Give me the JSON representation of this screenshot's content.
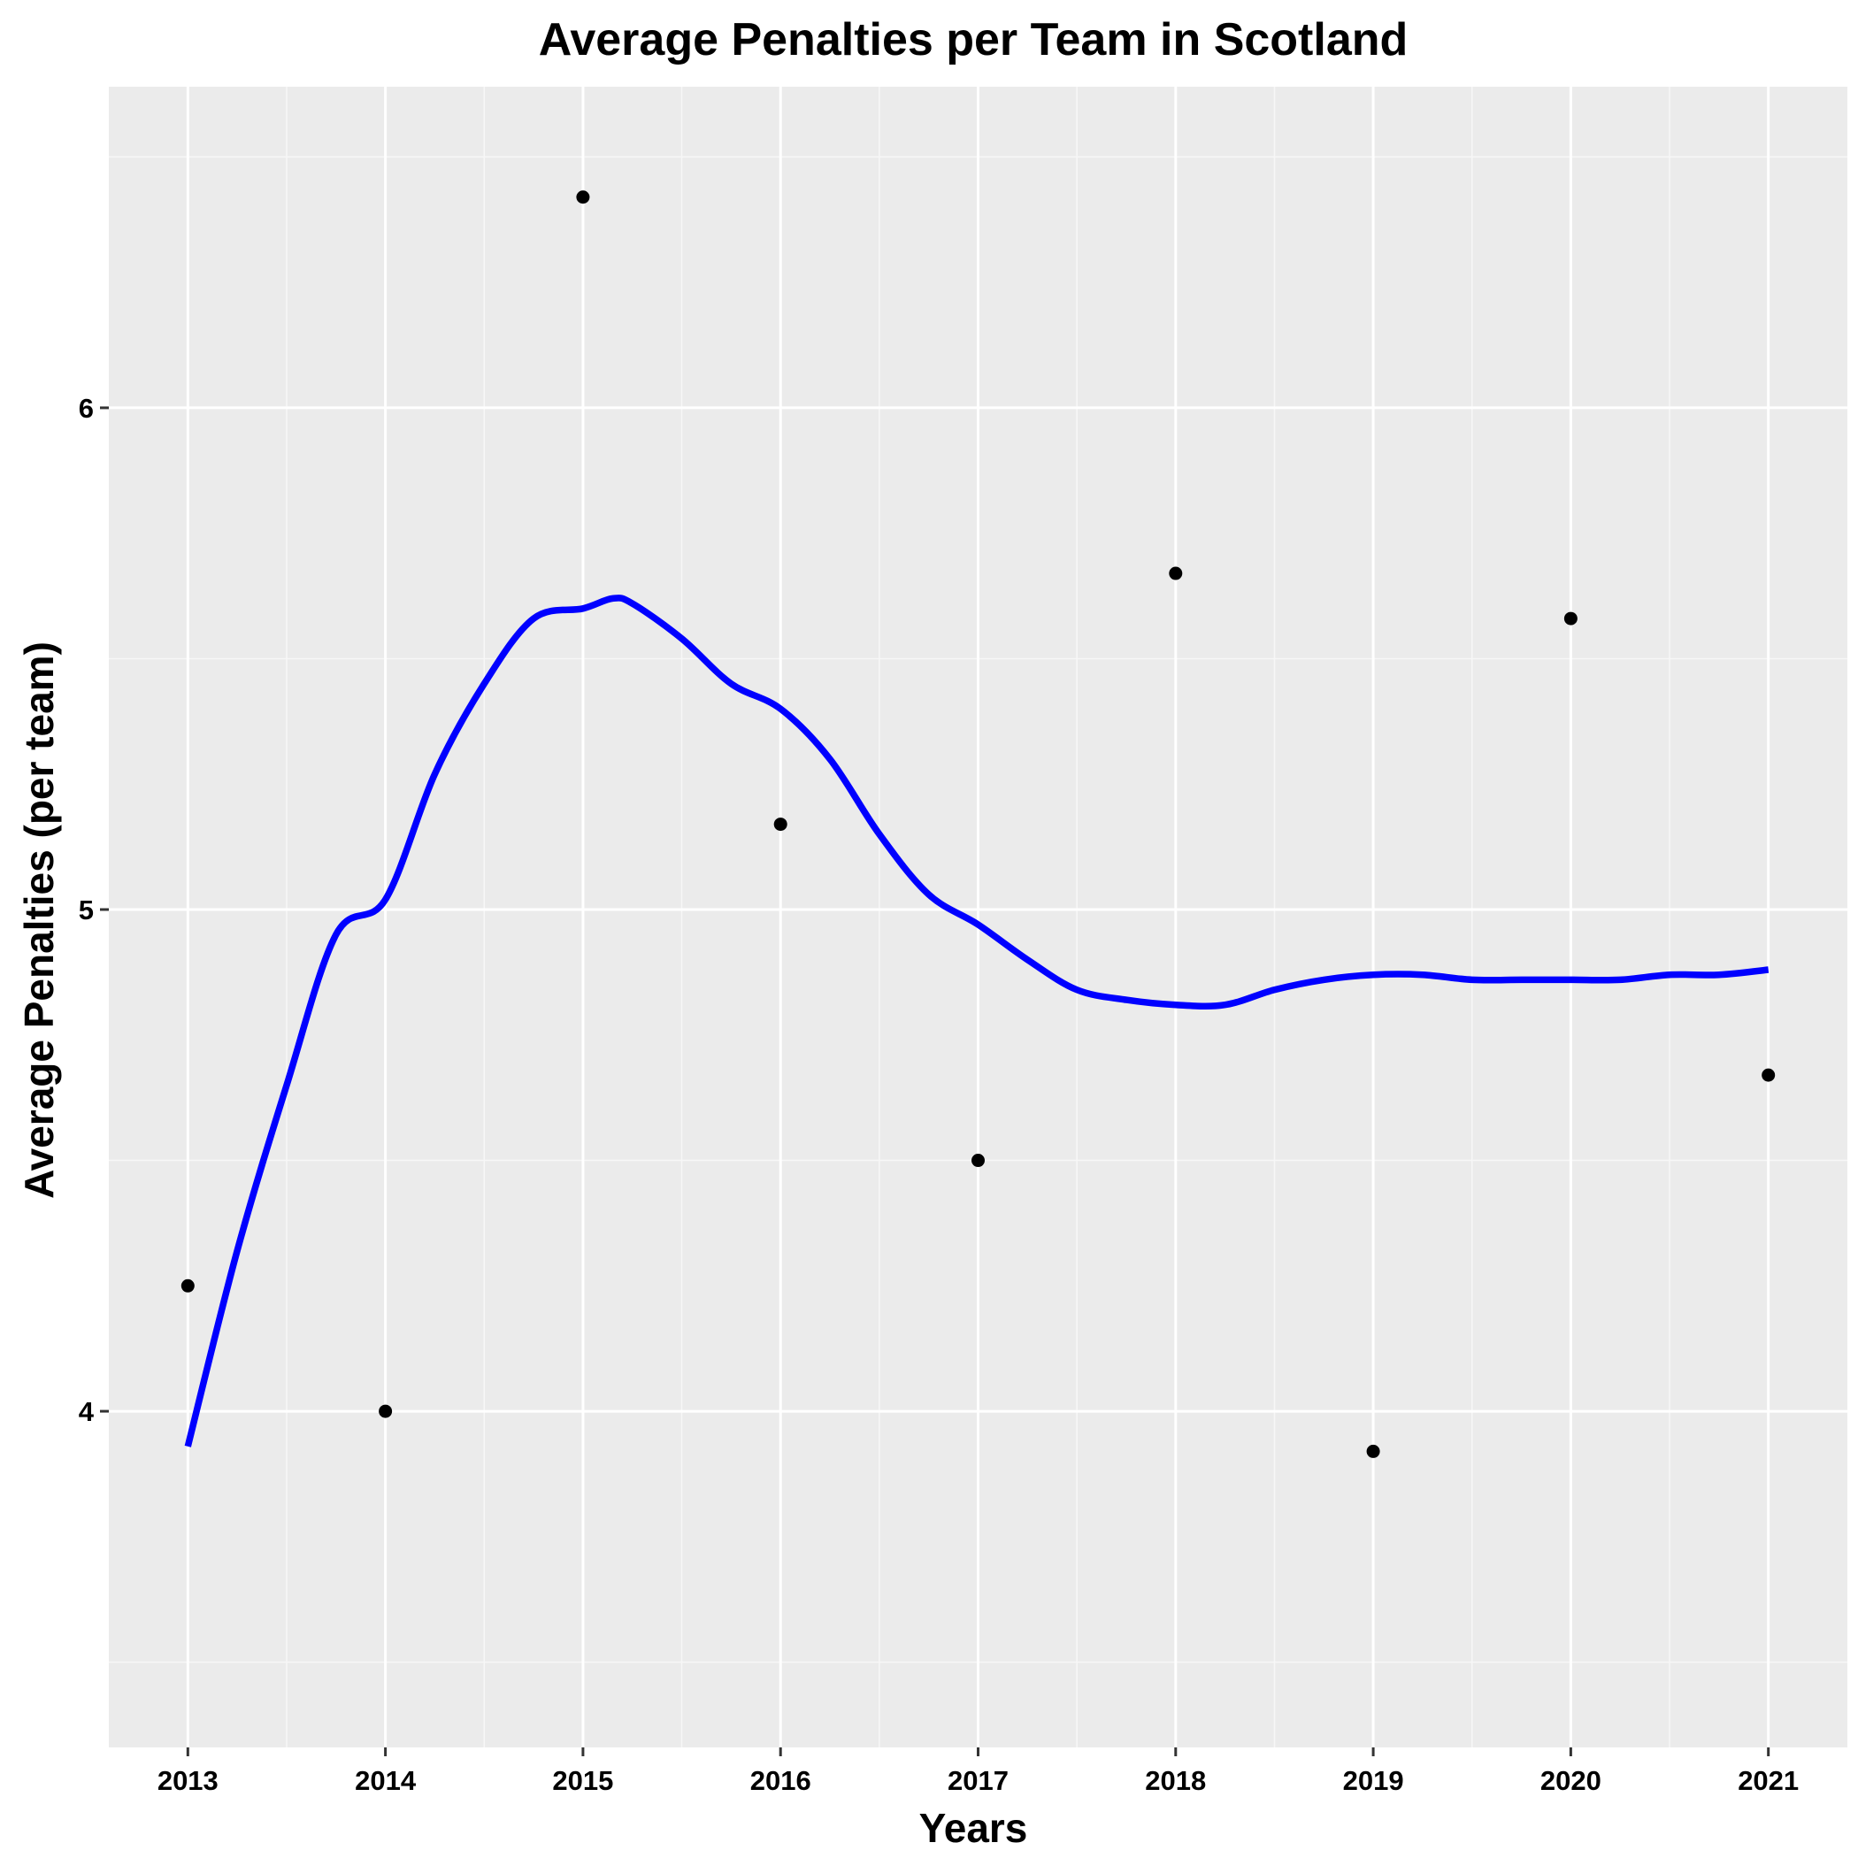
{
  "chart_data": {
    "type": "scatter",
    "title": "Average Penalties per Team in Scotland",
    "xlabel": "Years",
    "ylabel": "Average Penalties (per team)",
    "x_ticks": [
      "2013",
      "2014",
      "2015",
      "2016",
      "2017",
      "2018",
      "2019",
      "2020",
      "2021"
    ],
    "y_ticks": [
      "4",
      "5",
      "6"
    ],
    "xlim": [
      2012.6,
      2021.4
    ],
    "ylim": [
      3.33,
      6.64
    ],
    "grid": true,
    "points": [
      {
        "x": 2013,
        "y": 4.25
      },
      {
        "x": 2014,
        "y": 4.0
      },
      {
        "x": 2015,
        "y": 6.42
      },
      {
        "x": 2016,
        "y": 5.17
      },
      {
        "x": 2017,
        "y": 4.5
      },
      {
        "x": 2018,
        "y": 5.67
      },
      {
        "x": 2019,
        "y": 3.92
      },
      {
        "x": 2020,
        "y": 5.58
      },
      {
        "x": 2021,
        "y": 4.67
      }
    ],
    "series": [
      {
        "kind": "smooth-fit",
        "x": [
          2013,
          2013.25,
          2013.5,
          2013.75,
          2014,
          2014.25,
          2014.5,
          2014.75,
          2015,
          2015.15,
          2015.25,
          2015.5,
          2015.75,
          2016,
          2016.25,
          2016.5,
          2016.75,
          2017,
          2017.25,
          2017.5,
          2017.75,
          2018,
          2018.25,
          2018.5,
          2018.75,
          2019,
          2019.25,
          2019.5,
          2019.75,
          2020,
          2020.25,
          2020.5,
          2020.75,
          2021
        ],
        "y": [
          3.93,
          4.32,
          4.65,
          4.95,
          5.02,
          5.27,
          5.45,
          5.58,
          5.6,
          5.62,
          5.61,
          5.54,
          5.45,
          5.4,
          5.3,
          5.15,
          5.03,
          4.97,
          4.9,
          4.84,
          4.82,
          4.81,
          4.81,
          4.84,
          4.86,
          4.87,
          4.87,
          4.86,
          4.86,
          4.86,
          4.86,
          4.87,
          4.87,
          4.88
        ]
      }
    ],
    "colors": {
      "panel": "#EBEBEB",
      "grid_major": "#FFFFFF",
      "grid_minor": "#F7F7F7",
      "line": "#0000FF",
      "points": "#000000",
      "ticks": "#333333"
    }
  }
}
